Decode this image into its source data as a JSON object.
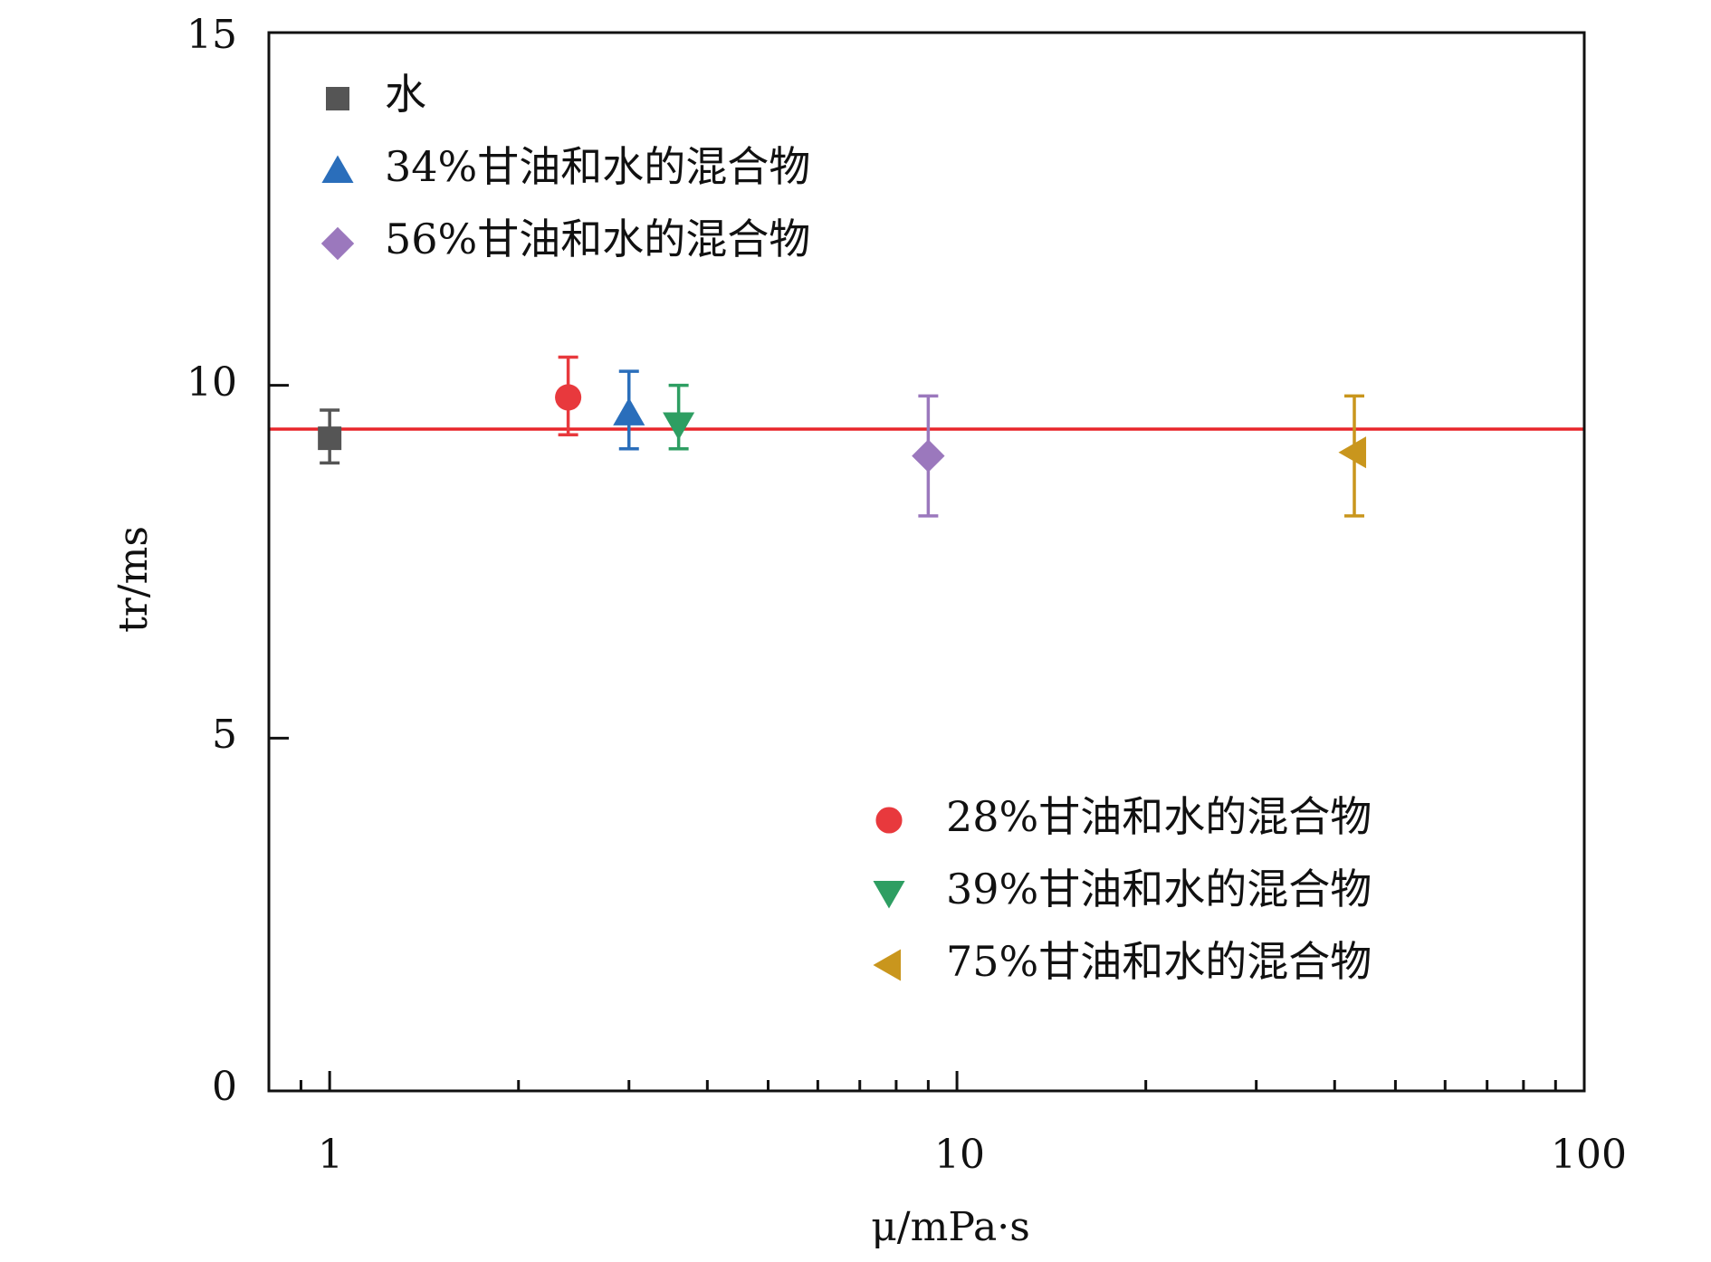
{
  "chart_data": {
    "type": "scatter",
    "x_scale": "log",
    "xlim": [
      0.8,
      100
    ],
    "ylim": [
      0,
      15
    ],
    "grid": false,
    "xlabel": "μ/mPa·s",
    "ylabel": "tr/ms",
    "x_ticks": [
      "1",
      "10",
      "100"
    ],
    "y_ticks": [
      "0",
      "5",
      "10",
      "15"
    ],
    "reference_line": {
      "y": 9.38,
      "color": "#e8262b"
    },
    "series": [
      {
        "name": "水",
        "marker": "square",
        "color": "#555555",
        "x": 1.0,
        "y": 9.25,
        "err_low": 8.9,
        "err_high": 9.65
      },
      {
        "name": "28%甘油和水的混合物",
        "marker": "circle",
        "color": "#e8393d",
        "x": 2.4,
        "y": 9.83,
        "err_low": 9.3,
        "err_high": 10.4
      },
      {
        "name": "34%甘油和水的混合物",
        "marker": "triangle-up",
        "color": "#2a6ebb",
        "x": 3.0,
        "y": 9.6,
        "err_low": 9.1,
        "err_high": 10.2
      },
      {
        "name": "39%甘油和水的混合物",
        "marker": "triangle-down",
        "color": "#2e9e62",
        "x": 3.6,
        "y": 9.45,
        "err_low": 9.1,
        "err_high": 10.0
      },
      {
        "name": "56%甘油和水的混合物",
        "marker": "diamond",
        "color": "#9b78bd",
        "x": 9.0,
        "y": 9.0,
        "err_low": 8.15,
        "err_high": 9.85
      },
      {
        "name": "75%甘油和水的混合物",
        "marker": "triangle-left",
        "color": "#c9961d",
        "x": 43.0,
        "y": 9.05,
        "err_low": 8.15,
        "err_high": 9.85
      }
    ],
    "legends": [
      {
        "placement": "top-left",
        "items": [
          "水",
          "34%甘油和水的混合物",
          "56%甘油和水的混合物"
        ]
      },
      {
        "placement": "bottom-right",
        "items": [
          "28%甘油和水的混合物",
          "39%甘油和水的混合物",
          "75%甘油和水的混合物"
        ]
      }
    ]
  }
}
